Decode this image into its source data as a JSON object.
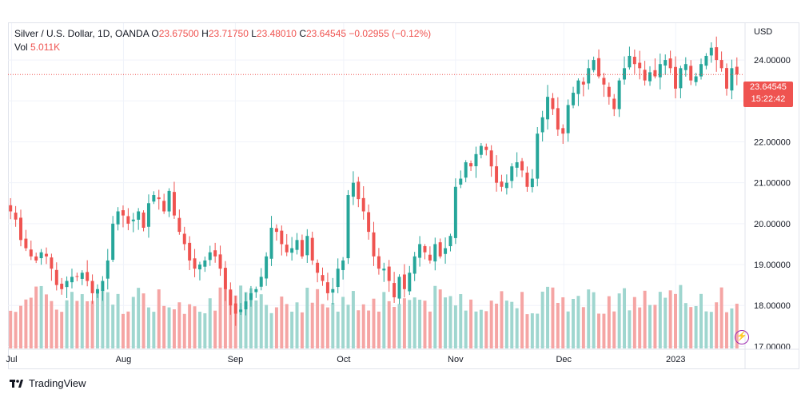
{
  "header": {
    "symbol": "Silver / U.S. Dollar, 1D, OANDA",
    "open_label": "O",
    "open": "23.67500",
    "high_label": "H",
    "high": "23.71750",
    "low_label": "L",
    "low": "23.48010",
    "close_label": "C",
    "close": "23.64545",
    "change": "−0.02955 (−0.12%)",
    "vol_label": "Vol",
    "vol": "5.011K"
  },
  "currency": "USD",
  "last_price": {
    "price": "23.64545",
    "countdown": "15:22:42"
  },
  "brand": "TradingView",
  "colors": {
    "up": "#26a69a",
    "down": "#ef5350",
    "vol_up": "#9fd6cf",
    "vol_down": "#f5a5a4",
    "grid": "#f0f3fa"
  },
  "icons": {
    "flash": "lightning-icon",
    "logo": "tradingview-logo-icon"
  },
  "chart_data": {
    "type": "candlestick",
    "title": "Silver / U.S. Dollar, 1D, OANDA",
    "y_ticks": [
      "24.00000",
      "23.00000",
      "22.00000",
      "21.00000",
      "20.00000",
      "19.00000",
      "18.00000",
      "17.00000"
    ],
    "y_tick_values": [
      24,
      23,
      22,
      21,
      20,
      19,
      18,
      17
    ],
    "ylim": [
      16.95,
      24.9
    ],
    "x_labels": [
      "Jul",
      "Aug",
      "Sep",
      "Oct",
      "Nov",
      "Dec",
      "2023"
    ],
    "x_label_dates": [
      "2022-07-01",
      "2022-08-01",
      "2022-09-01",
      "2022-10-01",
      "2022-11-01",
      "2022-12-01",
      "2023-01-01"
    ],
    "date_range": [
      "2022-06-30",
      "2023-01-20"
    ],
    "close_series": [
      20.3,
      20.1,
      19.6,
      19.4,
      19.2,
      19.1,
      19.3,
      19.2,
      18.9,
      18.5,
      18.4,
      18.6,
      18.7,
      18.7,
      18.8,
      18.6,
      18.3,
      18.4,
      18.6,
      19.1,
      20.0,
      20.3,
      20.2,
      20.0,
      20.1,
      20.3,
      19.9,
      20.5,
      20.7,
      20.6,
      20.3,
      20.8,
      20.2,
      19.8,
      19.5,
      19.1,
      18.9,
      19.0,
      19.1,
      19.3,
      19.2,
      18.9,
      18.4,
      18.0,
      17.8,
      17.9,
      18.1,
      18.3,
      18.4,
      18.7,
      19.2,
      19.9,
      19.8,
      19.5,
      19.3,
      19.4,
      19.6,
      19.2,
      19.7,
      19.1,
      18.8,
      18.6,
      18.3,
      18.4,
      18.9,
      19.1,
      20.7,
      21.0,
      20.6,
      20.3,
      19.8,
      19.2,
      18.9,
      18.9,
      18.6,
      18.2,
      18.7,
      18.4,
      18.8,
      19.2,
      19.5,
      19.3,
      19.1,
      19.5,
      19.2,
      19.4,
      19.7,
      20.9,
      21.1,
      21.5,
      21.4,
      21.7,
      21.9,
      21.8,
      21.4,
      21.0,
      20.9,
      21.0,
      21.4,
      21.5,
      21.3,
      20.9,
      21.1,
      22.2,
      22.6,
      23.1,
      22.8,
      22.3,
      22.2,
      22.9,
      23.2,
      23.5,
      23.4,
      23.8,
      24.0,
      23.6,
      23.4,
      23.1,
      22.8,
      23.5,
      23.8,
      24.1,
      23.9,
      23.8,
      23.5,
      23.7,
      23.6,
      23.9,
      24.0,
      23.8,
      23.3,
      23.8,
      23.9,
      23.5,
      23.6,
      23.9,
      24.1,
      24.3,
      24.0,
      23.8,
      23.3,
      23.8,
      23.65
    ],
    "volume_approx": "green/red volume bars in lower pane, roughly 2.5K–5.5K per day"
  }
}
